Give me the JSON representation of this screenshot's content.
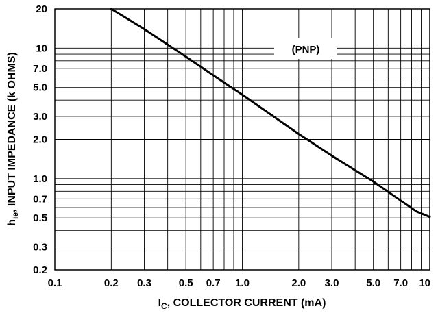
{
  "chart_data": {
    "type": "line",
    "xscale": "log",
    "yscale": "log",
    "xlim": [
      0.1,
      10
    ],
    "ylim": [
      0.2,
      20
    ],
    "xlabel_main": "I",
    "xlabel_sub": "C",
    "xlabel_rest": ", COLLECTOR CURRENT (mA)",
    "ylabel_main": "h",
    "ylabel_sub": "ie",
    "ylabel_rest": ", INPUT IMPEDANCE (k OHMS)",
    "x_tick_labels": [
      "0.1",
      "0.2",
      "0.3",
      "0.5",
      "0.7",
      "1.0",
      "2.0",
      "3.0",
      "5.0",
      "7.0",
      "10"
    ],
    "y_tick_labels": [
      "20",
      "10",
      "7.0",
      "5.0",
      "3.0",
      "2.0",
      "1.0",
      "0.7",
      "0.5",
      "0.3",
      "0.2"
    ],
    "grid": true,
    "annotation": "(PNP)",
    "series": [
      {
        "x": [
          0.2,
          0.3,
          0.5,
          0.7,
          1.0,
          2.0,
          3.0,
          5.0,
          7.0,
          8.5,
          10
        ],
        "y": [
          20,
          14,
          8.6,
          6.2,
          4.4,
          2.2,
          1.5,
          0.95,
          0.68,
          0.56,
          0.51
        ]
      }
    ]
  }
}
